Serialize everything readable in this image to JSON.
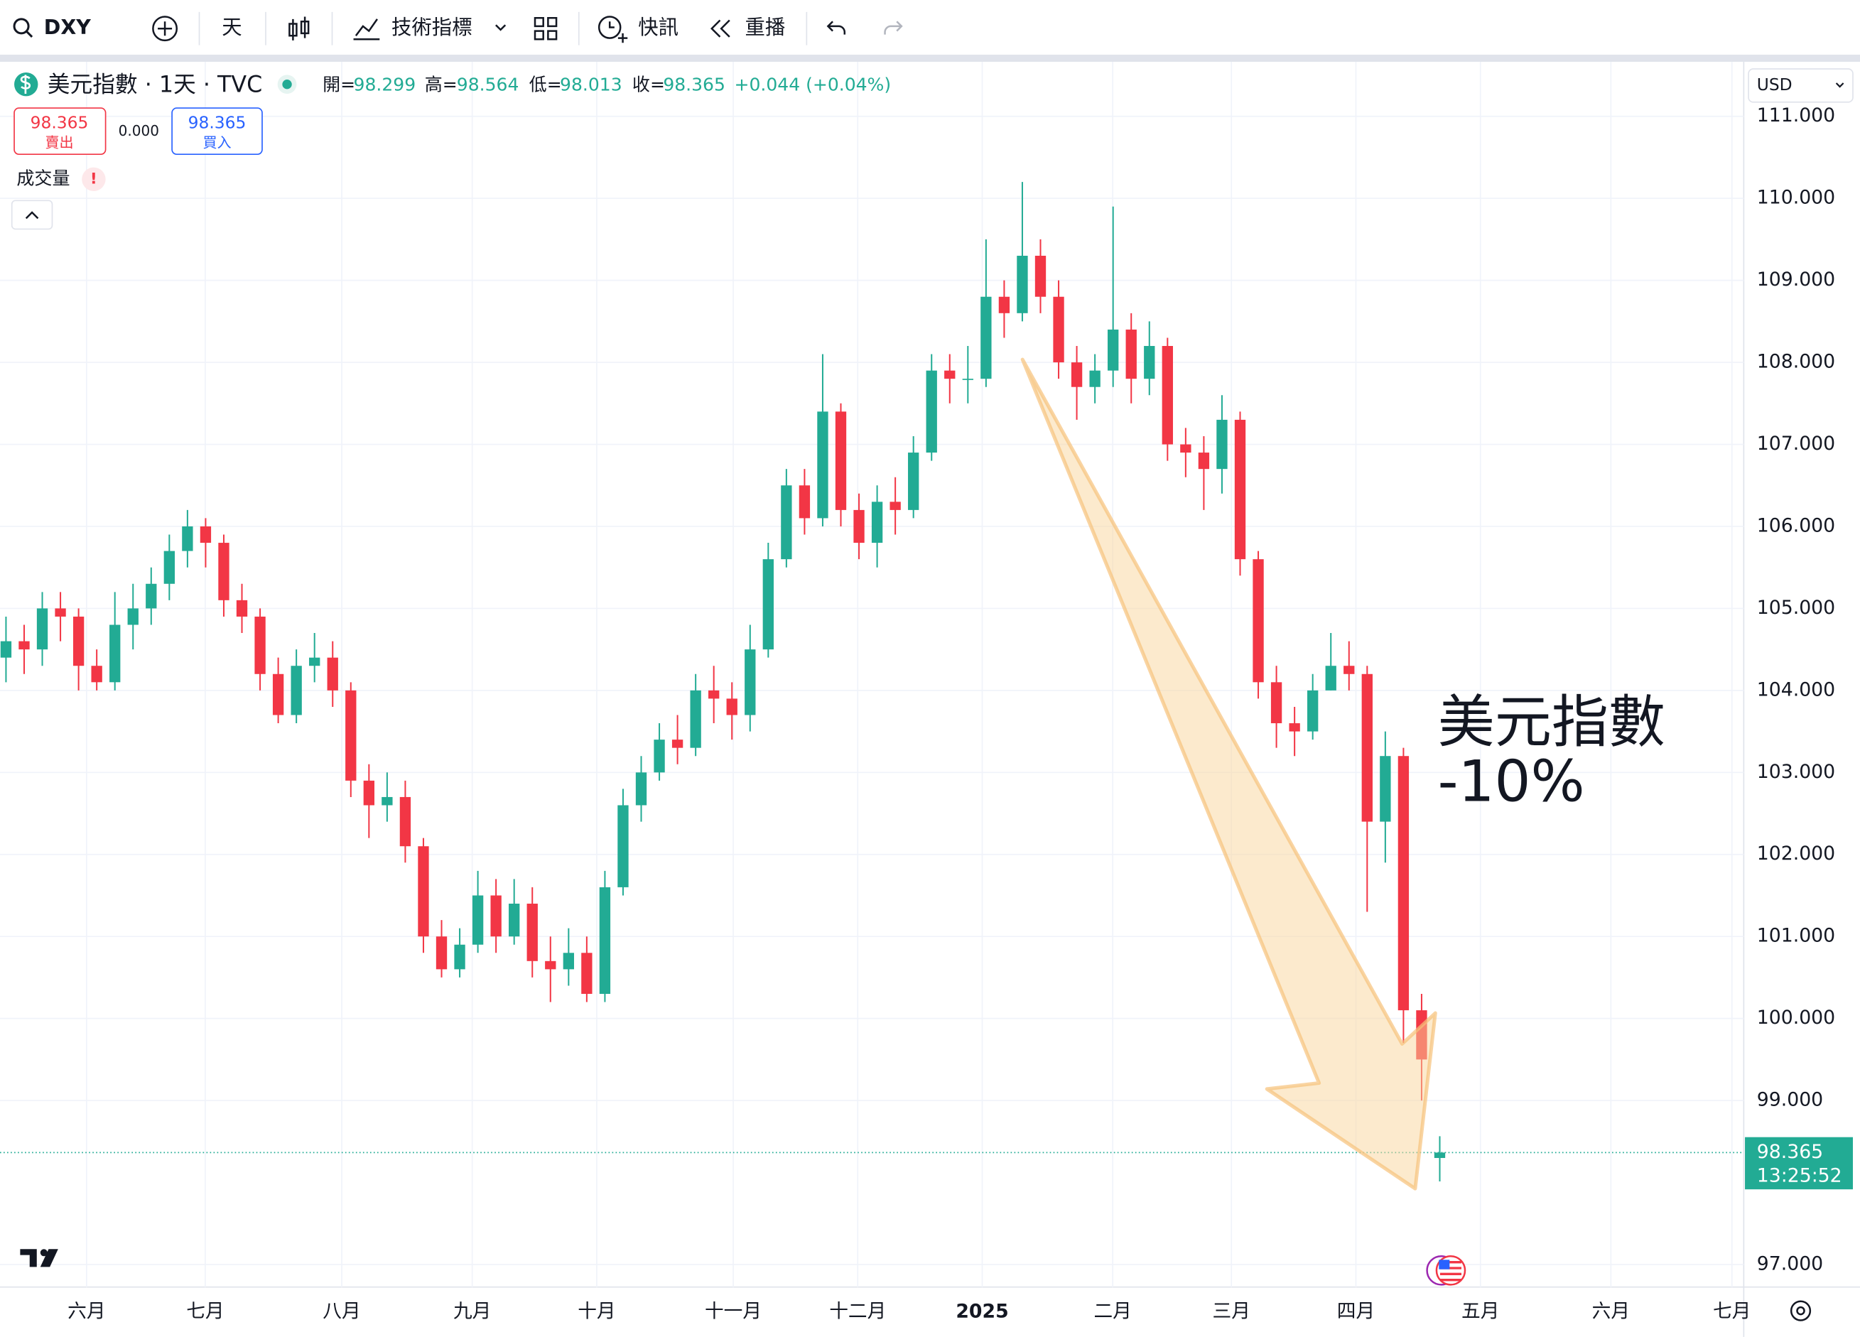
{
  "toolbar": {
    "symbol": "DXY",
    "interval": "天",
    "indicators": "技術指標",
    "alerts": "快訊",
    "replay": "重播"
  },
  "legend": {
    "title": "美元指數 · 1天 · TVC",
    "open_label": "開=",
    "high_label": "高=",
    "low_label": "低=",
    "close_label": "收=",
    "change": "+0.044 (+0.04%)",
    "sell": "賣出",
    "spread": "0.000",
    "buy": "買入",
    "volume": "成交量",
    "volume_warning": "!"
  },
  "currency": "USD",
  "price_label": {
    "countdown": "13:25:52"
  },
  "chart_data": {
    "type": "candlestick",
    "annotation": [
      "美元指數",
      "-10%"
    ],
    "x": [
      0,
      1,
      2,
      3,
      4,
      5,
      6,
      7,
      8,
      9,
      10,
      11,
      12,
      13,
      14,
      15,
      16,
      17,
      18,
      19,
      20,
      21,
      22,
      23,
      24,
      25,
      26,
      27,
      28,
      29,
      30,
      31,
      32,
      33,
      34,
      35,
      36,
      37,
      38,
      39,
      40,
      41,
      42,
      43,
      44,
      45,
      46,
      47,
      48,
      49,
      50,
      51,
      52,
      53,
      54,
      55,
      56,
      57,
      58,
      59,
      60,
      61,
      62,
      63,
      64,
      65,
      66,
      67,
      68,
      69,
      70,
      71,
      72,
      73,
      74,
      75,
      76,
      77,
      78,
      79
    ],
    "open": [
      104.4,
      104.6,
      104.5,
      105.0,
      104.9,
      104.3,
      104.1,
      104.8,
      105.0,
      105.3,
      105.7,
      106.0,
      105.8,
      105.1,
      104.9,
      104.2,
      103.7,
      104.3,
      104.4,
      104.0,
      102.9,
      102.6,
      102.7,
      102.1,
      101.0,
      100.6,
      100.9,
      101.5,
      101.0,
      101.4,
      100.7,
      100.6,
      100.8,
      100.3,
      101.6,
      102.6,
      103.0,
      103.4,
      103.3,
      104.0,
      103.9,
      103.7,
      104.5,
      105.6,
      106.5,
      106.1,
      107.4,
      106.2,
      105.8,
      106.3,
      106.2,
      106.9,
      107.9,
      107.8,
      107.8,
      108.8,
      108.6,
      109.3,
      108.8,
      108.0,
      107.7,
      107.9,
      108.4,
      107.8,
      108.2,
      107.0,
      106.9,
      106.7,
      107.3,
      105.6,
      104.1,
      103.6,
      103.5,
      104.0,
      104.3,
      104.2,
      102.4,
      103.2,
      100.1,
      98.299
    ],
    "high": [
      104.9,
      104.8,
      105.2,
      105.2,
      105.0,
      104.5,
      105.2,
      105.3,
      105.5,
      105.9,
      106.2,
      106.1,
      105.9,
      105.3,
      105.0,
      104.4,
      104.5,
      104.7,
      104.6,
      104.1,
      103.1,
      103.0,
      102.9,
      102.2,
      101.2,
      101.1,
      101.8,
      101.7,
      101.7,
      101.6,
      101.0,
      101.1,
      101.0,
      101.8,
      102.8,
      103.2,
      103.6,
      103.7,
      104.2,
      104.3,
      104.1,
      104.8,
      105.8,
      106.7,
      106.7,
      108.1,
      107.5,
      106.4,
      106.5,
      106.6,
      107.1,
      108.1,
      108.1,
      108.2,
      109.5,
      109.0,
      110.2,
      109.5,
      109.0,
      108.2,
      108.1,
      109.9,
      108.6,
      108.5,
      108.3,
      107.2,
      107.1,
      107.6,
      107.4,
      105.7,
      104.3,
      103.8,
      104.2,
      104.7,
      104.6,
      104.3,
      103.5,
      103.3,
      100.3,
      98.564
    ],
    "low": [
      104.1,
      104.2,
      104.3,
      104.6,
      104.0,
      104.0,
      104.0,
      104.5,
      104.8,
      105.1,
      105.5,
      105.5,
      104.9,
      104.7,
      104.0,
      103.6,
      103.6,
      104.1,
      103.8,
      102.7,
      102.2,
      102.4,
      101.9,
      100.8,
      100.5,
      100.5,
      100.8,
      100.8,
      100.9,
      100.5,
      100.2,
      100.4,
      100.2,
      100.2,
      101.5,
      102.4,
      102.9,
      103.1,
      103.2,
      103.6,
      103.4,
      103.5,
      104.4,
      105.5,
      105.9,
      106.0,
      106.0,
      105.6,
      105.5,
      105.9,
      106.1,
      106.8,
      107.5,
      107.5,
      107.7,
      108.3,
      108.5,
      108.6,
      107.8,
      107.3,
      107.5,
      107.7,
      107.5,
      107.6,
      106.8,
      106.6,
      106.2,
      106.4,
      105.4,
      103.9,
      103.3,
      103.2,
      103.4,
      104.0,
      104.0,
      101.3,
      101.9,
      99.7,
      99.0,
      98.013
    ],
    "close": [
      104.6,
      104.5,
      105.0,
      104.9,
      104.3,
      104.1,
      104.8,
      105.0,
      105.3,
      105.7,
      106.0,
      105.8,
      105.1,
      104.9,
      104.2,
      103.7,
      104.3,
      104.4,
      104.0,
      102.9,
      102.6,
      102.7,
      102.1,
      101.0,
      100.6,
      100.9,
      101.5,
      101.0,
      101.4,
      100.7,
      100.6,
      100.8,
      100.3,
      101.6,
      102.6,
      103.0,
      103.4,
      103.3,
      104.0,
      103.9,
      103.7,
      104.5,
      105.6,
      106.5,
      106.1,
      107.4,
      106.2,
      105.8,
      106.3,
      106.2,
      106.9,
      107.9,
      107.8,
      107.8,
      108.8,
      108.6,
      109.3,
      108.8,
      108.0,
      107.7,
      107.9,
      108.4,
      107.8,
      108.2,
      107.0,
      106.9,
      106.7,
      107.3,
      105.6,
      104.1,
      103.6,
      103.5,
      104.0,
      104.3,
      104.2,
      102.4,
      103.2,
      100.1,
      99.5,
      98.365
    ],
    "up_color": "#22ab94",
    "down_color": "#f23645",
    "xlim": [
      -0.33,
      95.75
    ],
    "xticks": [
      {
        "value": 4.44,
        "label": "六月"
      },
      {
        "value": 10.98,
        "label": "七月"
      },
      {
        "value": 18.5,
        "label": "八月"
      },
      {
        "value": 25.69,
        "label": "九月"
      },
      {
        "value": 32.55,
        "label": "十月"
      },
      {
        "value": 40.07,
        "label": "十一月"
      },
      {
        "value": 46.93,
        "label": "十二月"
      },
      {
        "value": 53.79,
        "label": "2025"
      },
      {
        "value": 60.98,
        "label": "二月"
      },
      {
        "value": 67.52,
        "label": "三月"
      },
      {
        "value": 74.38,
        "label": "四月"
      },
      {
        "value": 81.24,
        "label": "五月"
      },
      {
        "value": 88.43,
        "label": "六月"
      },
      {
        "value": 95.1,
        "label": "七月"
      }
    ],
    "ylim": [
      96.725,
      111.665
    ],
    "yticks": [
      {
        "value": 111,
        "label": "111.000"
      },
      {
        "value": 110,
        "label": "110.000"
      },
      {
        "value": 109,
        "label": "109.000"
      },
      {
        "value": 108,
        "label": "108.000"
      },
      {
        "value": 107,
        "label": "107.000"
      },
      {
        "value": 106,
        "label": "106.000"
      },
      {
        "value": 105,
        "label": "105.000"
      },
      {
        "value": 104,
        "label": "104.000"
      },
      {
        "value": 103,
        "label": "103.000"
      },
      {
        "value": 102,
        "label": "102.000"
      },
      {
        "value": 101,
        "label": "101.000"
      },
      {
        "value": 100,
        "label": "100.000"
      },
      {
        "value": 99,
        "label": "99.000"
      },
      {
        "value": 97,
        "label": "97.000"
      }
    ],
    "grid": true
  }
}
